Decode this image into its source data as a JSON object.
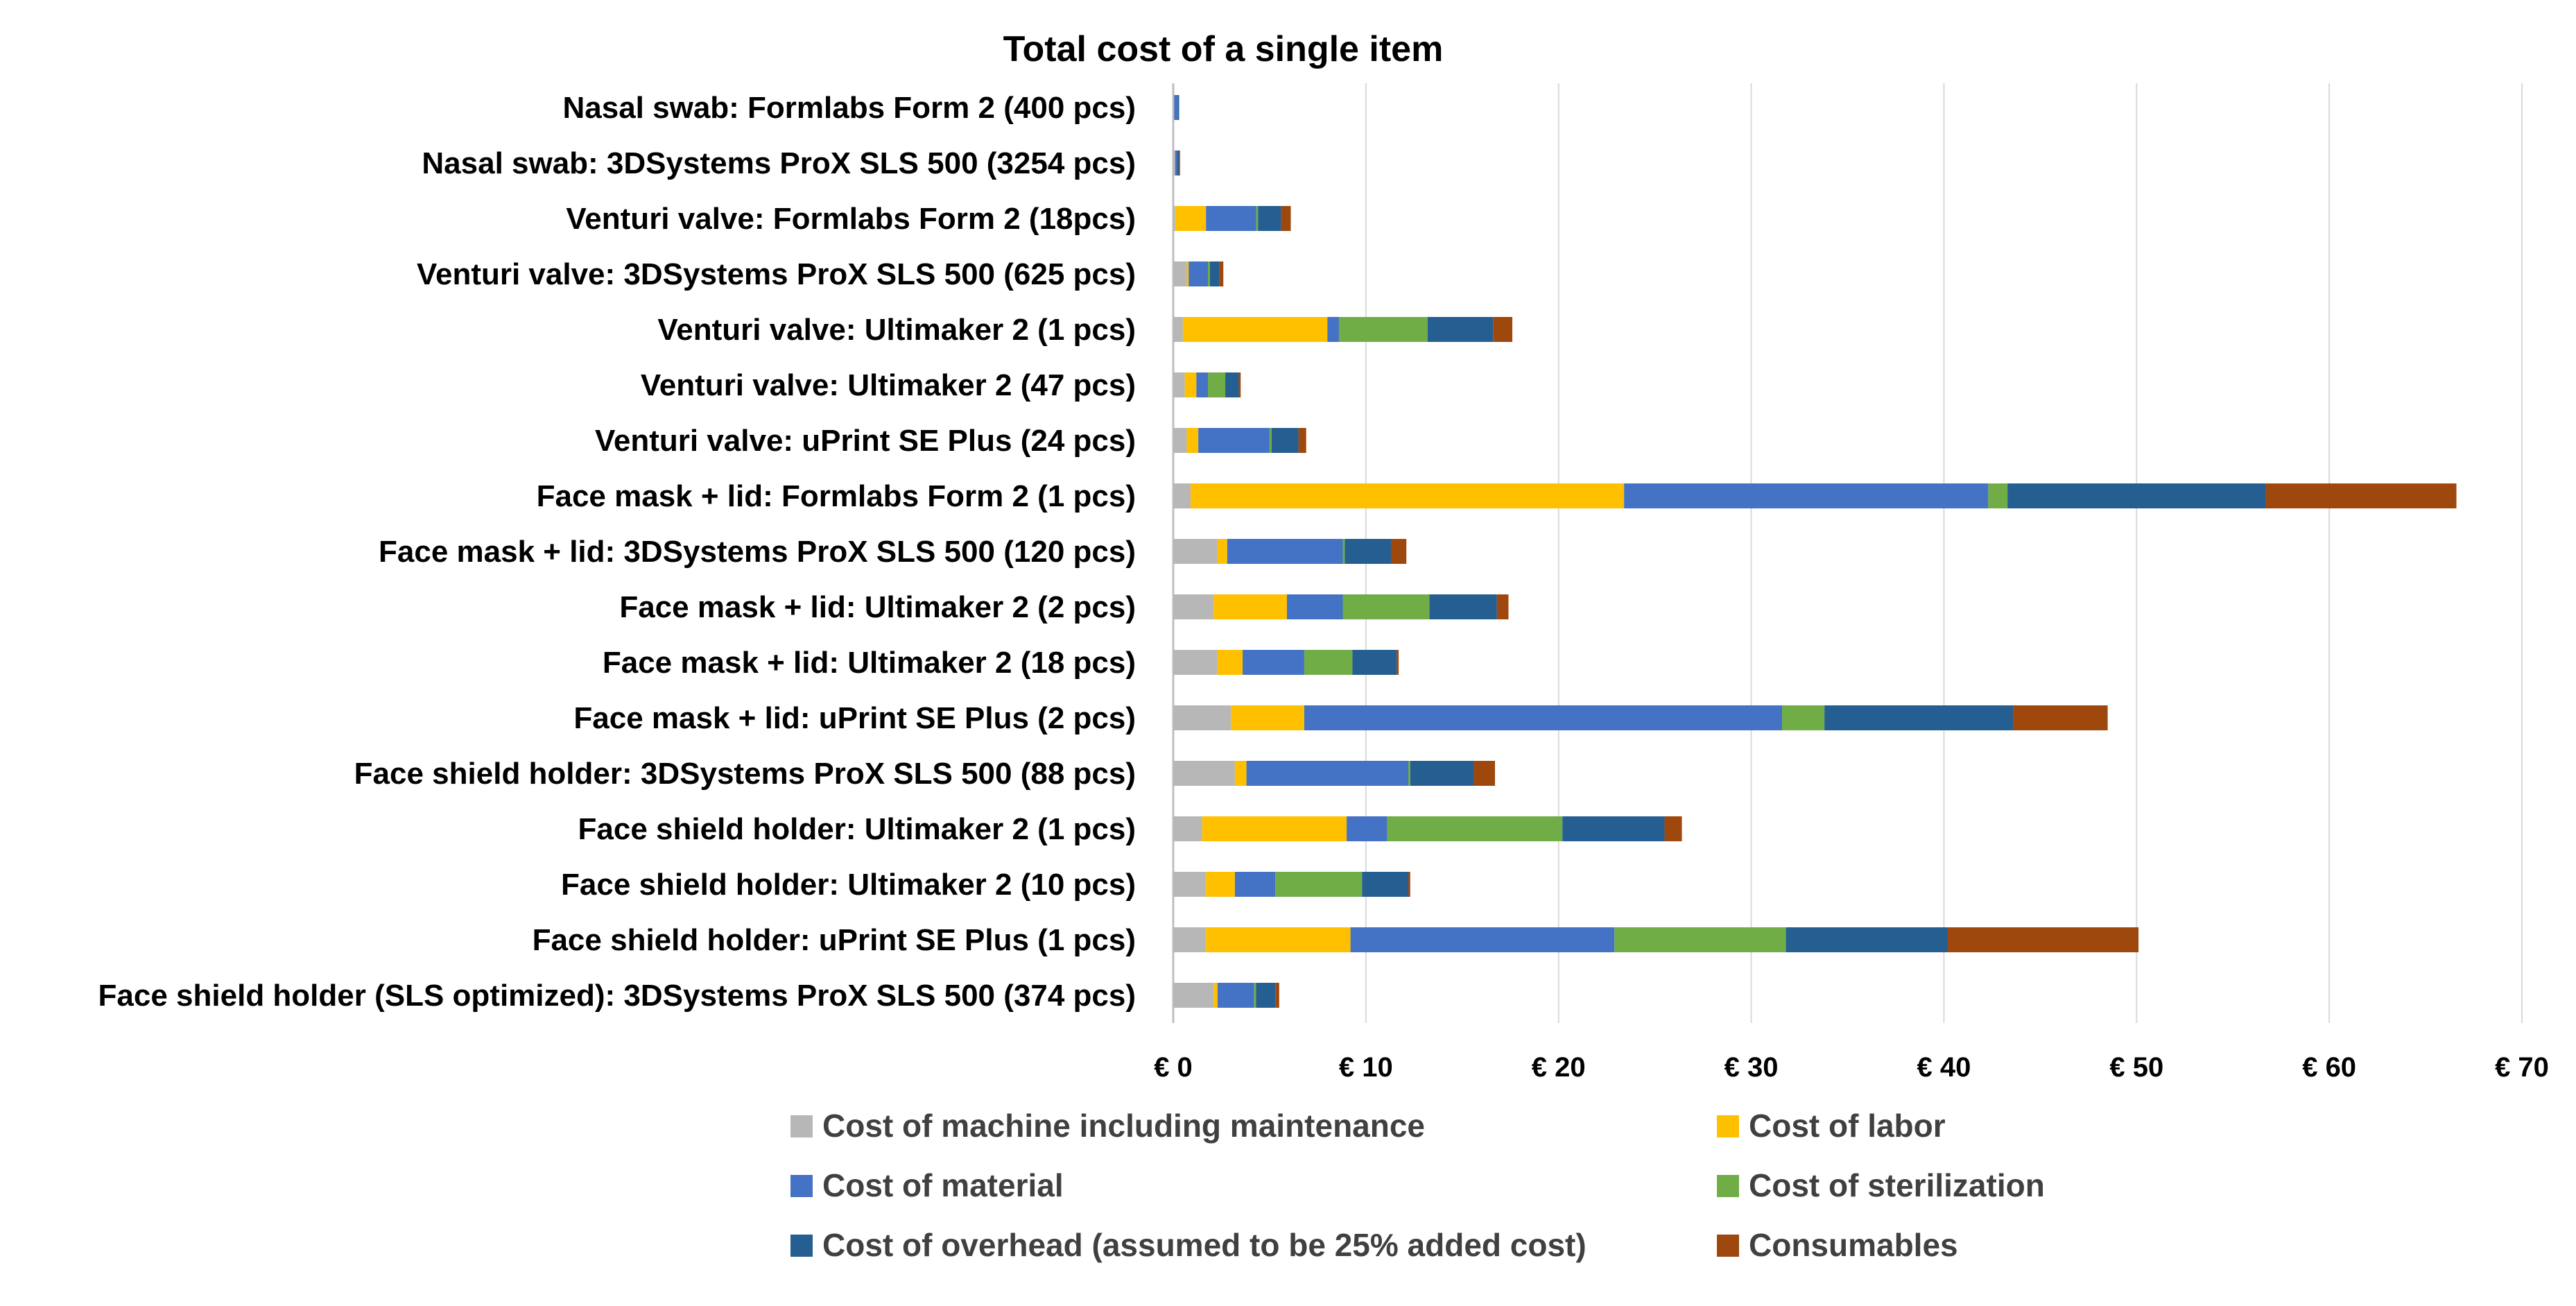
{
  "chart_data": {
    "type": "bar",
    "orientation": "horizontal",
    "stacked": true,
    "title": "Total cost of a single item",
    "xlabel": "",
    "ylabel": "",
    "xlim": [
      0,
      70
    ],
    "x_ticks": [
      0,
      10,
      20,
      30,
      40,
      50,
      60,
      70
    ],
    "x_tick_labels": [
      "€ 0",
      "€ 10",
      "€ 20",
      "€ 30",
      "€ 40",
      "€ 50",
      "€ 60",
      "€ 70"
    ],
    "grid": "vertical",
    "legend_position": "bottom",
    "categories": [
      "Nasal swab: Formlabs Form 2 (400 pcs)",
      "Nasal swab: 3DSystems ProX SLS 500 (3254 pcs)",
      "Venturi valve: Formlabs Form 2 (18pcs)",
      "Venturi valve: 3DSystems ProX SLS 500 (625 pcs)",
      "Venturi valve: Ultimaker 2 (1 pcs)",
      "Venturi valve: Ultimaker 2 (47 pcs)",
      "Venturi valve: uPrint SE Plus (24 pcs)",
      "Face mask + lid: Formlabs Form 2 (1 pcs)",
      "Face mask + lid: 3DSystems ProX SLS 500 (120 pcs)",
      "Face mask + lid: Ultimaker 2 (2 pcs)",
      "Face mask + lid: Ultimaker 2 (18 pcs)",
      "Face mask + lid: uPrint SE Plus (2 pcs)",
      "Face shield holder: 3DSystems ProX SLS 500 (88 pcs)",
      "Face shield holder: Ultimaker 2 (1 pcs)",
      "Face shield holder: Ultimaker 2 (10 pcs)",
      "Face shield holder: uPrint SE Plus (1 pcs)",
      "Face shield holder (SLS optimized): 3DSystems ProX SLS 500 (374 pcs)"
    ],
    "series": [
      {
        "name": "Cost of machine including maintenance",
        "color": "#b7b7b7",
        "values": [
          0.05,
          0.1,
          0.1,
          0.7,
          0.5,
          0.6,
          0.7,
          0.9,
          2.3,
          2.1,
          2.3,
          3.0,
          3.2,
          1.5,
          1.7,
          1.7,
          2.1
        ]
      },
      {
        "name": "Cost of labor",
        "color": "#ffc000",
        "values": [
          0.0,
          0.0,
          1.6,
          0.1,
          7.5,
          0.6,
          0.6,
          22.5,
          0.5,
          3.8,
          1.3,
          3.8,
          0.6,
          7.5,
          1.5,
          7.5,
          0.2
        ]
      },
      {
        "name": "Cost of material",
        "color": "#4472c4",
        "values": [
          0.2,
          0.1,
          2.6,
          1.0,
          0.6,
          0.6,
          3.7,
          18.9,
          6.0,
          2.9,
          3.2,
          24.8,
          8.4,
          2.1,
          2.1,
          13.7,
          1.9
        ]
      },
      {
        "name": "Cost of sterilization",
        "color": "#70ad47",
        "values": [
          0.0,
          0.0,
          0.1,
          0.1,
          4.6,
          0.9,
          0.1,
          1.0,
          0.1,
          4.5,
          2.5,
          2.2,
          0.1,
          9.1,
          4.5,
          8.9,
          0.1
        ]
      },
      {
        "name": "Cost of overhead (assumed to be 25% added cost)",
        "color": "#255e91",
        "values": [
          0.05,
          0.1,
          1.2,
          0.5,
          3.4,
          0.7,
          1.4,
          13.4,
          2.4,
          3.5,
          2.3,
          9.8,
          3.3,
          5.3,
          2.4,
          8.4,
          1.0
        ]
      },
      {
        "name": "Consumables",
        "color": "#9e480e",
        "values": [
          0.0,
          0.05,
          0.5,
          0.2,
          1.0,
          0.1,
          0.4,
          9.9,
          0.8,
          0.6,
          0.1,
          4.9,
          1.1,
          0.9,
          0.1,
          9.9,
          0.2
        ]
      }
    ]
  }
}
